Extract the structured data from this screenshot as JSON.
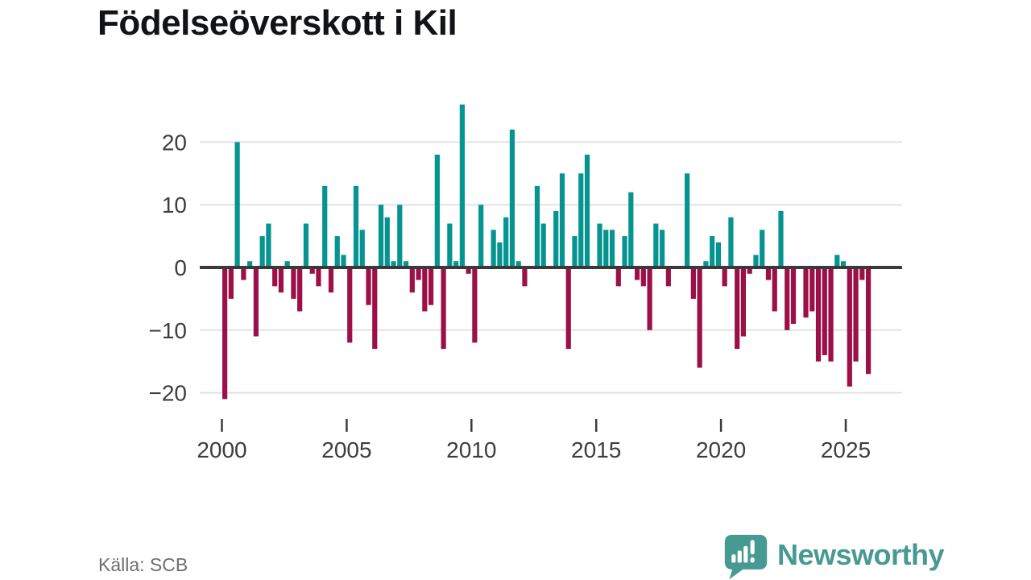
{
  "title": "Födelseöverskott i Kil",
  "source": "Källa: SCB",
  "logo": {
    "text": "Newsworthy",
    "color": "#469a92",
    "icon": "speech-bubble-bar-chart-icon"
  },
  "colors": {
    "positive_bar": "#059490",
    "negative_bar": "#9c1047",
    "gridline": "#e3e3e3",
    "zero_line": "#3a3a3a",
    "axis_text": "#3d3d3d",
    "title_text": "#111316",
    "source_text": "#6e6e6e"
  },
  "chart_data": {
    "type": "bar",
    "title": "Födelseöverskott i Kil",
    "xlabel": "",
    "ylabel": "",
    "frequency": "quarterly",
    "start_period": "2000-Q1",
    "end_period": "2025-Q4",
    "ylim": [
      -22,
      27
    ],
    "grid": true,
    "legend": "none",
    "yticks": [
      {
        "value": 20,
        "label": "20"
      },
      {
        "value": 10,
        "label": "10"
      },
      {
        "value": 0,
        "label": "0"
      },
      {
        "value": -10,
        "label": "−10"
      },
      {
        "value": -20,
        "label": "−20"
      }
    ],
    "xticks": [
      "2000",
      "2005",
      "2010",
      "2015",
      "2020",
      "2025"
    ],
    "values": [
      -21,
      -5,
      20,
      -2,
      1,
      -11,
      5,
      7,
      -3,
      -4,
      1,
      -5,
      -7,
      7,
      -1,
      -3,
      13,
      -4,
      5,
      2,
      -12,
      13,
      6,
      -6,
      -13,
      10,
      8,
      1,
      10,
      1,
      -4,
      -2,
      -7,
      -6,
      18,
      -13,
      7,
      1,
      26,
      -1,
      -12,
      10,
      0,
      6,
      4,
      8,
      22,
      1,
      -3,
      0,
      13,
      7,
      0,
      9,
      15,
      -13,
      5,
      15,
      18,
      0,
      7,
      6,
      6,
      -3,
      5,
      12,
      -2,
      -3,
      -10,
      7,
      6,
      -3,
      0,
      0,
      15,
      -5,
      -16,
      1,
      5,
      4,
      -3,
      8,
      -13,
      -11,
      -1,
      2,
      6,
      -2,
      -7,
      9,
      -10,
      -9,
      0,
      -8,
      -7,
      -15,
      -14,
      -15,
      2,
      1,
      -19,
      -15,
      -2,
      -17
    ]
  }
}
